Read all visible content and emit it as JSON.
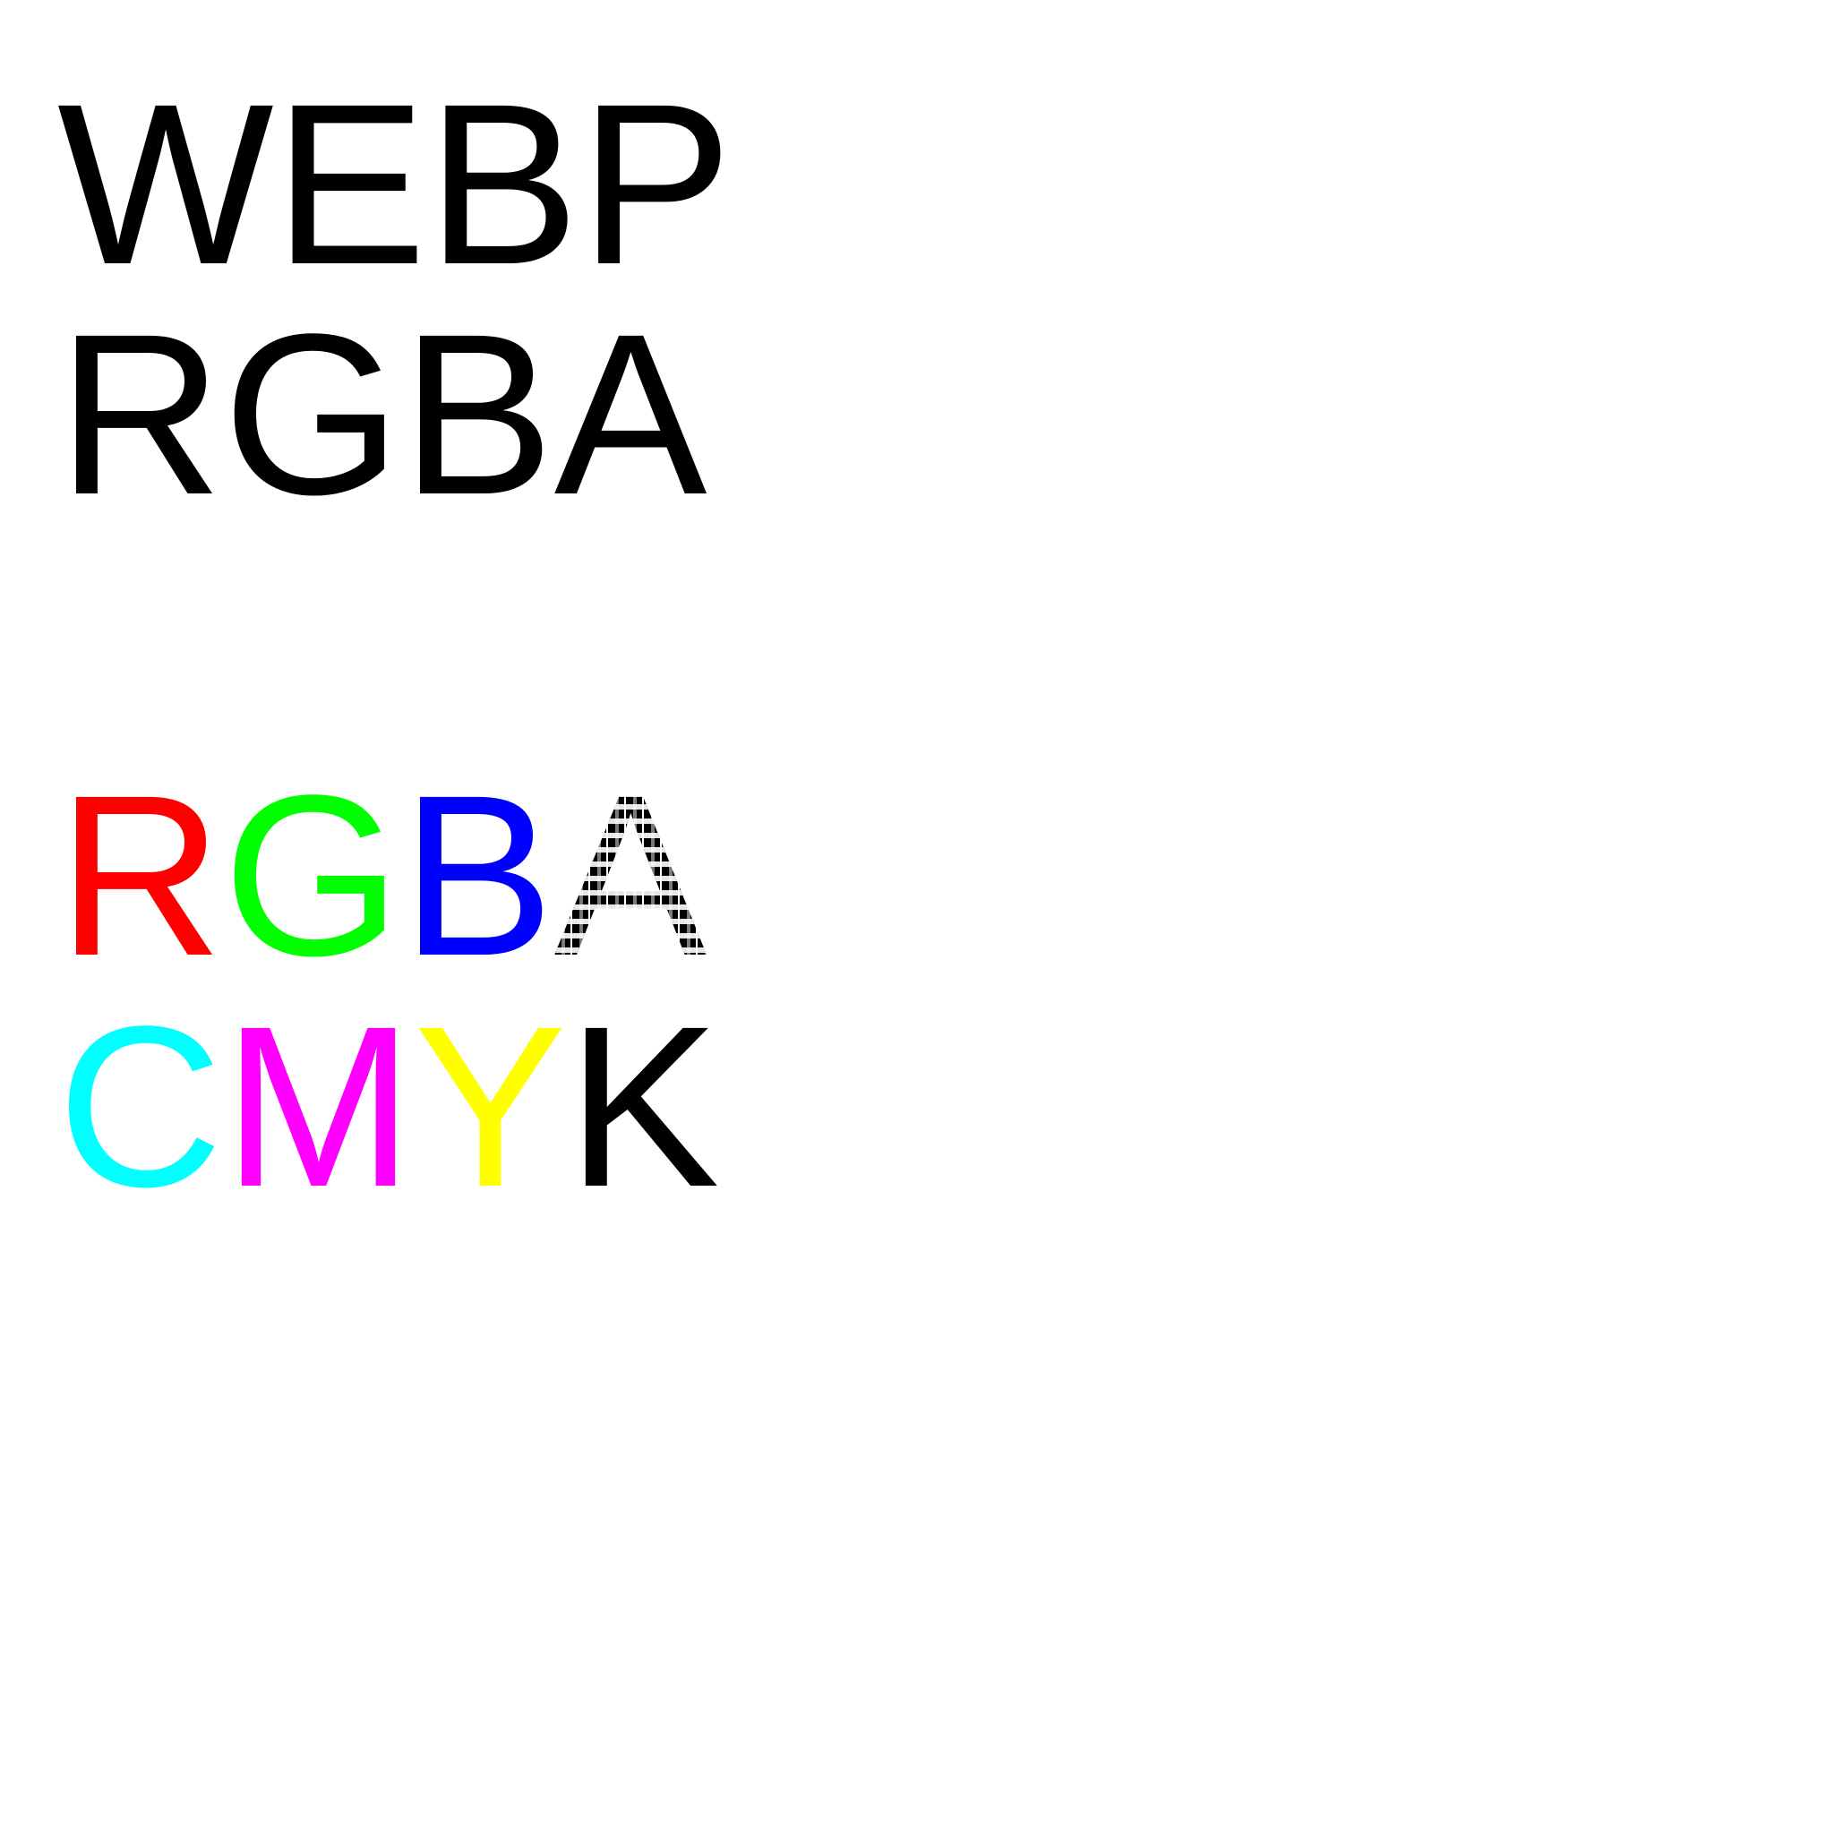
{
  "lines": [
    {
      "text": "WEBP",
      "color": "#000000"
    },
    {
      "text": "RGBA",
      "color": "#000000"
    }
  ],
  "rgba": {
    "letters": [
      {
        "char": "R",
        "color": "#ff0000"
      },
      {
        "char": "G",
        "color": "#00ff00"
      },
      {
        "char": "B",
        "color": "#0000ff"
      },
      {
        "char": "A",
        "color": "transparent-checkered"
      }
    ]
  },
  "cmyk": {
    "letters": [
      {
        "char": "C",
        "color": "#00ffff"
      },
      {
        "char": "M",
        "color": "#ff00ff"
      },
      {
        "char": "Y",
        "color": "#ffff00"
      },
      {
        "char": "K",
        "color": "#000000"
      }
    ]
  },
  "background": "#ffffff"
}
